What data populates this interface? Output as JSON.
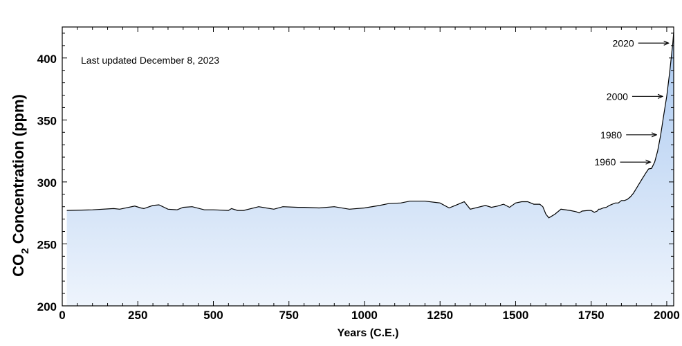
{
  "chart_data": {
    "type": "area",
    "title": "",
    "annotation": "Last updated December 8, 2023",
    "xlabel": "Years (C.E.)",
    "ylabel_parts": [
      "CO",
      "2",
      " Concentration (ppm)"
    ],
    "xlim": [
      0,
      2023
    ],
    "ylim": [
      200,
      425
    ],
    "x_ticks": [
      0,
      250,
      500,
      750,
      1000,
      1250,
      1500,
      1750,
      2000
    ],
    "y_ticks": [
      200,
      250,
      300,
      350,
      400
    ],
    "grid": false,
    "fill_colors": {
      "top": "#a9c8f0",
      "bottom": "#eef4fc"
    },
    "line_color": "#000000",
    "series": [
      {
        "x": [
          15,
          100,
          170,
          190,
          240,
          260,
          270,
          300,
          320,
          350,
          380,
          400,
          430,
          470,
          500,
          550,
          560,
          580,
          600,
          650,
          700,
          730,
          780,
          800,
          850,
          900,
          950,
          1000,
          1050,
          1080,
          1120,
          1150,
          1200,
          1250,
          1280,
          1300,
          1330,
          1350,
          1400,
          1420,
          1440,
          1460,
          1480,
          1500,
          1520,
          1540,
          1560,
          1580,
          1590,
          1600,
          1610,
          1630,
          1650,
          1680,
          1700,
          1710,
          1720,
          1740,
          1750,
          1760,
          1770,
          1775,
          1780,
          1790,
          1800,
          1810,
          1820,
          1830,
          1840,
          1850,
          1860,
          1870,
          1880,
          1890,
          1900,
          1910,
          1920,
          1930,
          1940,
          1950,
          1960,
          1970,
          1980,
          1990,
          2000,
          2010,
          2020,
          2023
        ],
        "y": [
          277,
          277.5,
          278.5,
          278,
          280.5,
          279,
          278.5,
          281,
          281.5,
          278,
          277.5,
          279.5,
          280,
          277.5,
          277.5,
          277,
          278.5,
          277,
          277,
          280,
          278,
          280,
          279.5,
          279.5,
          279,
          280,
          278,
          279,
          281,
          282.5,
          283,
          284.5,
          284.5,
          283,
          279,
          281,
          284,
          278,
          281,
          279.5,
          280.5,
          282,
          279.5,
          283,
          284,
          284,
          282,
          282,
          280,
          274,
          271,
          274,
          278,
          277,
          276,
          275,
          276.5,
          277,
          277,
          275.5,
          276.5,
          278,
          278,
          279,
          279.5,
          281,
          282,
          283,
          283,
          285,
          285,
          286,
          288,
          291,
          295,
          299,
          303,
          307,
          310.5,
          311,
          316,
          325,
          338,
          354,
          369,
          389,
          412,
          421
        ]
      }
    ],
    "markers": [
      {
        "year": 1960,
        "label": "1960",
        "value": 316
      },
      {
        "year": 1980,
        "label": "1980",
        "value": 338
      },
      {
        "year": 2000,
        "label": "2000",
        "value": 369
      },
      {
        "year": 2020,
        "label": "2020",
        "value": 412
      }
    ]
  }
}
